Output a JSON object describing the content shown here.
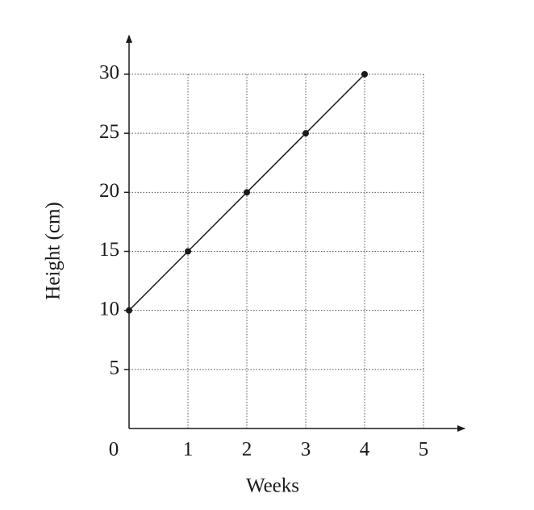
{
  "chart_data": {
    "type": "line",
    "x_label": "Weeks",
    "y_label": "Height (cm)",
    "x": [
      0,
      1,
      2,
      3,
      4
    ],
    "series": [
      {
        "color": "#1a1a1a",
        "values": [
          10,
          15,
          20,
          25,
          30
        ]
      }
    ],
    "xlim": [
      0,
      5
    ],
    "ylim": [
      0,
      30
    ],
    "xticks": [
      0,
      1,
      2,
      3,
      4,
      5
    ],
    "yticks": [
      5,
      10,
      15,
      20,
      25,
      30
    ],
    "grid": true
  }
}
